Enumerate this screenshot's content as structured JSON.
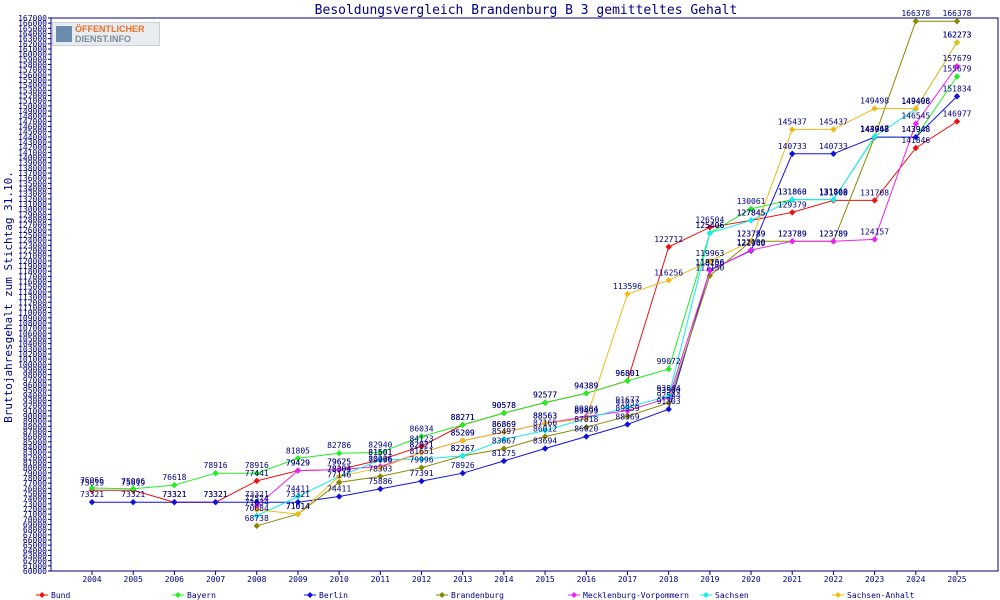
{
  "chart_data": {
    "type": "line",
    "title": "Besoldungsvergleich Brandenburg B 3 gemitteltes Gehalt",
    "ylabel": "Bruttojahresgehalt zum Stichtag 31.10.",
    "xlabel": "",
    "ylim": [
      60000,
      167000
    ],
    "y_tick_step": 1000,
    "grid": false,
    "legend_placement": "bottom",
    "x": [
      "2004",
      "2005",
      "2006",
      "2007",
      "2008",
      "2009",
      "2010",
      "2011",
      "2012",
      "2013",
      "2014",
      "2015",
      "2016",
      "2017",
      "2018",
      "2019",
      "2020",
      "2021",
      "2022",
      "2023",
      "2024",
      "2025"
    ],
    "series": [
      {
        "name": "Bund",
        "color": "#ee1111",
        "values": [
          75619,
          75619,
          73321,
          73321,
          77441,
          79429,
          79625,
          81501,
          84123,
          88271,
          90578,
          92577,
          94389,
          96801,
          122712,
          126504,
          127845,
          129379,
          131708,
          131708,
          141846,
          146977
        ]
      },
      {
        "name": "Bayern",
        "color": "#22ee22",
        "values": [
          76066,
          75906,
          76618,
          78916,
          78916,
          81805,
          82786,
          82940,
          86034,
          88271,
          90578,
          92577,
          94389,
          96801,
          99072,
          125406,
          130061,
          131860,
          131860,
          143948,
          143948,
          155679
        ]
      },
      {
        "name": "Berlin",
        "color": "#1111dd",
        "values": [
          73321,
          73321,
          73321,
          73321,
          73321,
          73321,
          74411,
          75886,
          77391,
          78926,
          81275,
          83694,
          86020,
          88369,
          91303,
          118256,
          121960,
          140733,
          140733,
          143948,
          143948,
          151834
        ]
      },
      {
        "name": "Brandenburg",
        "color": "#888800",
        "values": [
          null,
          null,
          null,
          null,
          68738,
          71014,
          77146,
          78303,
          79996,
          82267,
          83667,
          86012,
          87818,
          89959,
          92544,
          117150,
          123789,
          123789,
          123789,
          143948,
          166378,
          166378
        ]
      },
      {
        "name": "Mecklenburg-Vorpommern",
        "color": "#ee22ee",
        "values": [
          null,
          null,
          null,
          null,
          72574,
          79429,
          79625,
          80226,
          82921,
          85209,
          86869,
          88563,
          89884,
          91032,
          93500,
          118100,
          122100,
          123789,
          123789,
          124157,
          146545,
          157679
        ]
      },
      {
        "name": "Sachsen",
        "color": "#11eeee",
        "values": [
          null,
          null,
          null,
          null,
          70684,
          74411,
          78304,
          81501,
          81651,
          82267,
          85497,
          87166,
          89499,
          91677,
          93844,
          125406,
          127845,
          131860,
          131860,
          144067,
          149406,
          162273
        ]
      },
      {
        "name": "Sachsen-Anhalt",
        "color": "#eebb11",
        "values": [
          null,
          null,
          null,
          null,
          71834,
          71014,
          78303,
          79996,
          82921,
          85209,
          86869,
          88563,
          89499,
          113596,
          116256,
          119963,
          123789,
          145437,
          145437,
          149498,
          149498,
          162273
        ]
      }
    ]
  },
  "watermark": {
    "line1": "ÖFFENTLICHER",
    "line2": "DIENST.INFO"
  }
}
